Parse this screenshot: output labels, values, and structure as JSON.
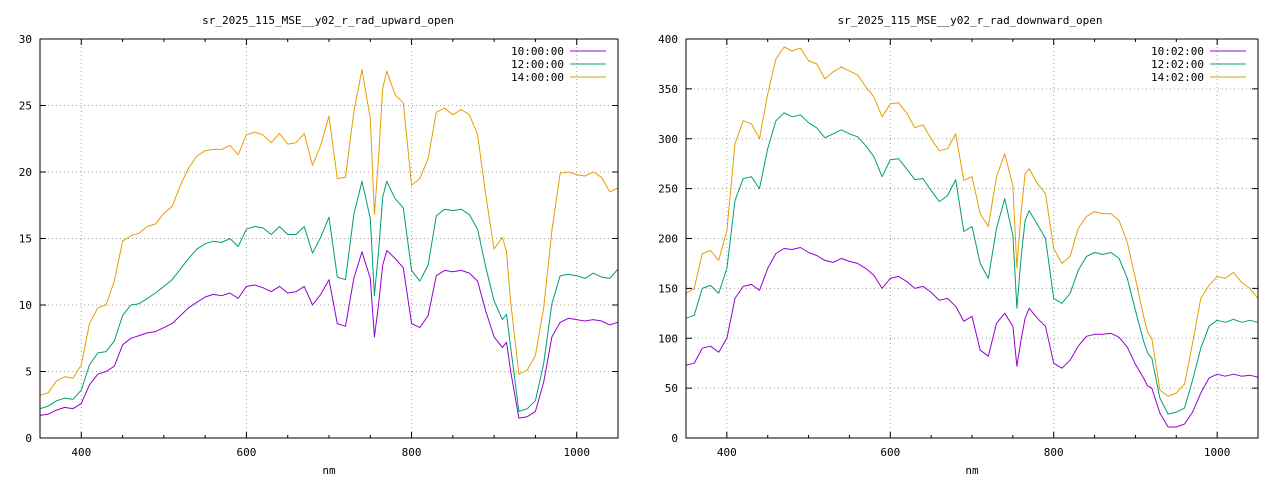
{
  "chart_data": [
    {
      "type": "line",
      "title": "sr_2025_115_MSE__y02_r_rad_upward_open",
      "xlabel": "nm",
      "ylabel": "",
      "xlim": [
        350,
        1050
      ],
      "ylim": [
        0,
        30
      ],
      "xticks": [
        400,
        600,
        800,
        1000
      ],
      "yticks": [
        0,
        5,
        10,
        15,
        20,
        25,
        30
      ],
      "grid": true,
      "legend_position": "top-right",
      "series": [
        {
          "name": "10:00:00",
          "color": "#9400d3",
          "x": [
            350,
            360,
            370,
            380,
            390,
            400,
            410,
            420,
            430,
            440,
            450,
            460,
            470,
            480,
            490,
            500,
            510,
            520,
            530,
            540,
            550,
            560,
            570,
            580,
            590,
            600,
            610,
            620,
            630,
            640,
            650,
            660,
            670,
            680,
            690,
            700,
            710,
            720,
            730,
            740,
            750,
            755,
            760,
            765,
            770,
            780,
            790,
            800,
            810,
            820,
            830,
            840,
            850,
            860,
            870,
            880,
            890,
            900,
            910,
            915,
            920,
            930,
            940,
            950,
            960,
            970,
            980,
            990,
            1000,
            1010,
            1020,
            1030,
            1040,
            1050
          ],
          "y": [
            1.7,
            1.8,
            2.1,
            2.3,
            2.2,
            2.6,
            4.0,
            4.8,
            5.0,
            5.4,
            7.0,
            7.5,
            7.7,
            7.9,
            8.0,
            8.3,
            8.6,
            9.2,
            9.8,
            10.2,
            10.6,
            10.8,
            10.7,
            10.9,
            10.5,
            11.4,
            11.5,
            11.3,
            11.0,
            11.4,
            10.9,
            11.0,
            11.4,
            10.0,
            10.8,
            11.9,
            8.6,
            8.4,
            12.0,
            14.0,
            12.0,
            7.6,
            10.0,
            13.0,
            14.1,
            13.5,
            12.8,
            8.6,
            8.3,
            9.2,
            12.2,
            12.6,
            12.5,
            12.6,
            12.4,
            11.8,
            9.5,
            7.6,
            6.8,
            7.2,
            5.0,
            1.5,
            1.6,
            2.0,
            4.2,
            7.6,
            8.7,
            9.0,
            8.9,
            8.8,
            8.9,
            8.8,
            8.5,
            8.7
          ]
        },
        {
          "name": "12:00:00",
          "color": "#009e73",
          "x": [
            350,
            360,
            370,
            380,
            390,
            400,
            410,
            420,
            430,
            440,
            450,
            460,
            470,
            480,
            490,
            500,
            510,
            520,
            530,
            540,
            550,
            560,
            570,
            580,
            590,
            600,
            610,
            620,
            630,
            640,
            650,
            660,
            670,
            680,
            690,
            700,
            710,
            720,
            730,
            740,
            750,
            755,
            760,
            765,
            770,
            780,
            790,
            800,
            810,
            820,
            830,
            840,
            850,
            860,
            870,
            880,
            890,
            900,
            910,
            915,
            920,
            930,
            940,
            950,
            960,
            970,
            980,
            990,
            1000,
            1010,
            1020,
            1030,
            1040,
            1050
          ],
          "y": [
            2.2,
            2.4,
            2.8,
            3.0,
            2.9,
            3.6,
            5.5,
            6.4,
            6.5,
            7.3,
            9.2,
            10.0,
            10.1,
            10.5,
            10.9,
            11.4,
            11.9,
            12.7,
            13.5,
            14.2,
            14.6,
            14.8,
            14.7,
            15.0,
            14.4,
            15.7,
            15.9,
            15.8,
            15.3,
            15.9,
            15.3,
            15.3,
            15.9,
            13.9,
            15.1,
            16.6,
            12.1,
            11.9,
            16.8,
            19.3,
            16.5,
            10.7,
            14.0,
            18.1,
            19.3,
            18.0,
            17.3,
            12.6,
            11.8,
            13.0,
            16.7,
            17.2,
            17.1,
            17.2,
            16.8,
            15.7,
            12.8,
            10.3,
            8.9,
            9.3,
            6.8,
            2.0,
            2.2,
            2.8,
            5.6,
            10.1,
            12.2,
            12.3,
            12.2,
            12.0,
            12.4,
            12.1,
            12.0,
            12.7
          ]
        },
        {
          "name": "14:00:00",
          "color": "#e69f00",
          "x": [
            350,
            360,
            370,
            380,
            390,
            400,
            410,
            420,
            430,
            440,
            450,
            460,
            470,
            480,
            490,
            500,
            510,
            520,
            530,
            540,
            550,
            560,
            570,
            580,
            590,
            600,
            610,
            620,
            630,
            640,
            650,
            660,
            670,
            680,
            690,
            700,
            710,
            720,
            730,
            740,
            750,
            755,
            760,
            765,
            770,
            780,
            790,
            800,
            810,
            820,
            830,
            840,
            850,
            860,
            870,
            880,
            890,
            900,
            910,
            915,
            920,
            930,
            940,
            950,
            960,
            970,
            980,
            990,
            1000,
            1010,
            1020,
            1030,
            1040,
            1050
          ],
          "y": [
            3.2,
            3.4,
            4.3,
            4.6,
            4.5,
            5.5,
            8.6,
            9.8,
            10.0,
            11.8,
            14.8,
            15.2,
            15.4,
            15.9,
            16.1,
            16.9,
            17.4,
            19.0,
            20.3,
            21.2,
            21.6,
            21.7,
            21.7,
            22.0,
            21.3,
            22.8,
            23.0,
            22.8,
            22.2,
            22.9,
            22.1,
            22.2,
            22.9,
            20.5,
            22.0,
            24.2,
            19.5,
            19.6,
            24.5,
            27.7,
            24.0,
            16.8,
            21.0,
            26.3,
            27.6,
            25.8,
            25.2,
            19.0,
            19.5,
            21.0,
            24.5,
            24.8,
            24.3,
            24.7,
            24.3,
            22.8,
            18.2,
            14.2,
            15.1,
            14.0,
            10.2,
            4.8,
            5.1,
            6.2,
            9.8,
            15.6,
            19.9,
            20.0,
            19.8,
            19.7,
            20.0,
            19.6,
            18.5,
            18.8
          ]
        }
      ]
    },
    {
      "type": "line",
      "title": "sr_2025_115_MSE__y02_r_rad_downward_open",
      "xlabel": "nm",
      "ylabel": "",
      "xlim": [
        350,
        1050
      ],
      "ylim": [
        0,
        400
      ],
      "xticks": [
        400,
        600,
        800,
        1000
      ],
      "yticks": [
        0,
        50,
        100,
        150,
        200,
        250,
        300,
        350,
        400
      ],
      "grid": true,
      "legend_position": "top-right",
      "series": [
        {
          "name": "10:02:00",
          "color": "#9400d3",
          "x": [
            350,
            360,
            370,
            380,
            390,
            400,
            410,
            420,
            430,
            440,
            450,
            460,
            470,
            480,
            490,
            500,
            510,
            520,
            530,
            540,
            550,
            560,
            570,
            580,
            590,
            600,
            610,
            620,
            630,
            640,
            650,
            660,
            670,
            680,
            690,
            700,
            710,
            720,
            730,
            740,
            750,
            755,
            760,
            765,
            770,
            780,
            790,
            800,
            810,
            820,
            830,
            840,
            850,
            860,
            870,
            880,
            890,
            900,
            910,
            915,
            920,
            930,
            940,
            950,
            960,
            970,
            980,
            990,
            1000,
            1010,
            1020,
            1030,
            1040,
            1050
          ],
          "y": [
            73,
            75,
            90,
            92,
            86,
            100,
            140,
            152,
            154,
            148,
            170,
            185,
            190,
            189,
            191,
            186,
            183,
            178,
            176,
            180,
            177,
            175,
            170,
            163,
            150,
            160,
            162,
            157,
            150,
            152,
            146,
            138,
            140,
            132,
            117,
            122,
            88,
            82,
            115,
            125,
            112,
            72,
            98,
            120,
            130,
            120,
            112,
            75,
            70,
            78,
            92,
            102,
            104,
            104,
            105,
            101,
            91,
            74,
            60,
            52,
            50,
            25,
            11,
            11,
            14,
            26,
            45,
            60,
            64,
            62,
            64,
            62,
            63,
            61
          ]
        },
        {
          "name": "12:02:00",
          "color": "#009e73",
          "x": [
            350,
            360,
            370,
            380,
            390,
            400,
            410,
            420,
            430,
            440,
            450,
            460,
            470,
            480,
            490,
            500,
            510,
            520,
            530,
            540,
            550,
            560,
            570,
            580,
            590,
            600,
            610,
            620,
            630,
            640,
            650,
            660,
            670,
            680,
            690,
            700,
            710,
            720,
            730,
            740,
            750,
            755,
            760,
            765,
            770,
            780,
            790,
            800,
            810,
            820,
            830,
            840,
            850,
            860,
            870,
            880,
            890,
            900,
            910,
            915,
            920,
            930,
            940,
            950,
            960,
            970,
            980,
            990,
            1000,
            1010,
            1020,
            1030,
            1040,
            1050
          ],
          "y": [
            120,
            123,
            150,
            153,
            145,
            170,
            238,
            260,
            262,
            250,
            290,
            318,
            326,
            322,
            324,
            316,
            311,
            301,
            305,
            309,
            305,
            302,
            293,
            282,
            262,
            279,
            280,
            270,
            259,
            260,
            248,
            237,
            243,
            259,
            207,
            212,
            175,
            160,
            210,
            240,
            203,
            130,
            180,
            218,
            228,
            214,
            200,
            140,
            135,
            145,
            168,
            182,
            186,
            184,
            186,
            180,
            160,
            128,
            97,
            85,
            80,
            40,
            24,
            26,
            30,
            58,
            90,
            112,
            118,
            116,
            119,
            116,
            118,
            116
          ]
        },
        {
          "name": "14:02:00",
          "color": "#e69f00",
          "x": [
            350,
            360,
            370,
            380,
            390,
            400,
            410,
            420,
            430,
            440,
            450,
            460,
            470,
            480,
            490,
            500,
            510,
            520,
            530,
            540,
            550,
            560,
            570,
            580,
            590,
            600,
            610,
            620,
            630,
            640,
            650,
            660,
            670,
            680,
            690,
            700,
            710,
            720,
            730,
            740,
            750,
            755,
            760,
            765,
            770,
            780,
            790,
            800,
            810,
            820,
            830,
            840,
            850,
            860,
            870,
            880,
            890,
            900,
            910,
            915,
            920,
            930,
            940,
            950,
            960,
            970,
            980,
            990,
            1000,
            1010,
            1020,
            1030,
            1040,
            1050
          ],
          "y": [
            145,
            150,
            185,
            188,
            178,
            208,
            295,
            318,
            315,
            300,
            345,
            380,
            392,
            388,
            391,
            378,
            375,
            360,
            367,
            372,
            368,
            364,
            352,
            342,
            322,
            335,
            336,
            326,
            311,
            314,
            300,
            288,
            290,
            305,
            258,
            262,
            225,
            212,
            262,
            285,
            253,
            170,
            225,
            265,
            270,
            255,
            245,
            190,
            175,
            182,
            210,
            222,
            227,
            225,
            225,
            218,
            196,
            160,
            122,
            106,
            100,
            48,
            42,
            45,
            54,
            95,
            140,
            153,
            162,
            160,
            166,
            156,
            150,
            140
          ]
        }
      ]
    }
  ]
}
